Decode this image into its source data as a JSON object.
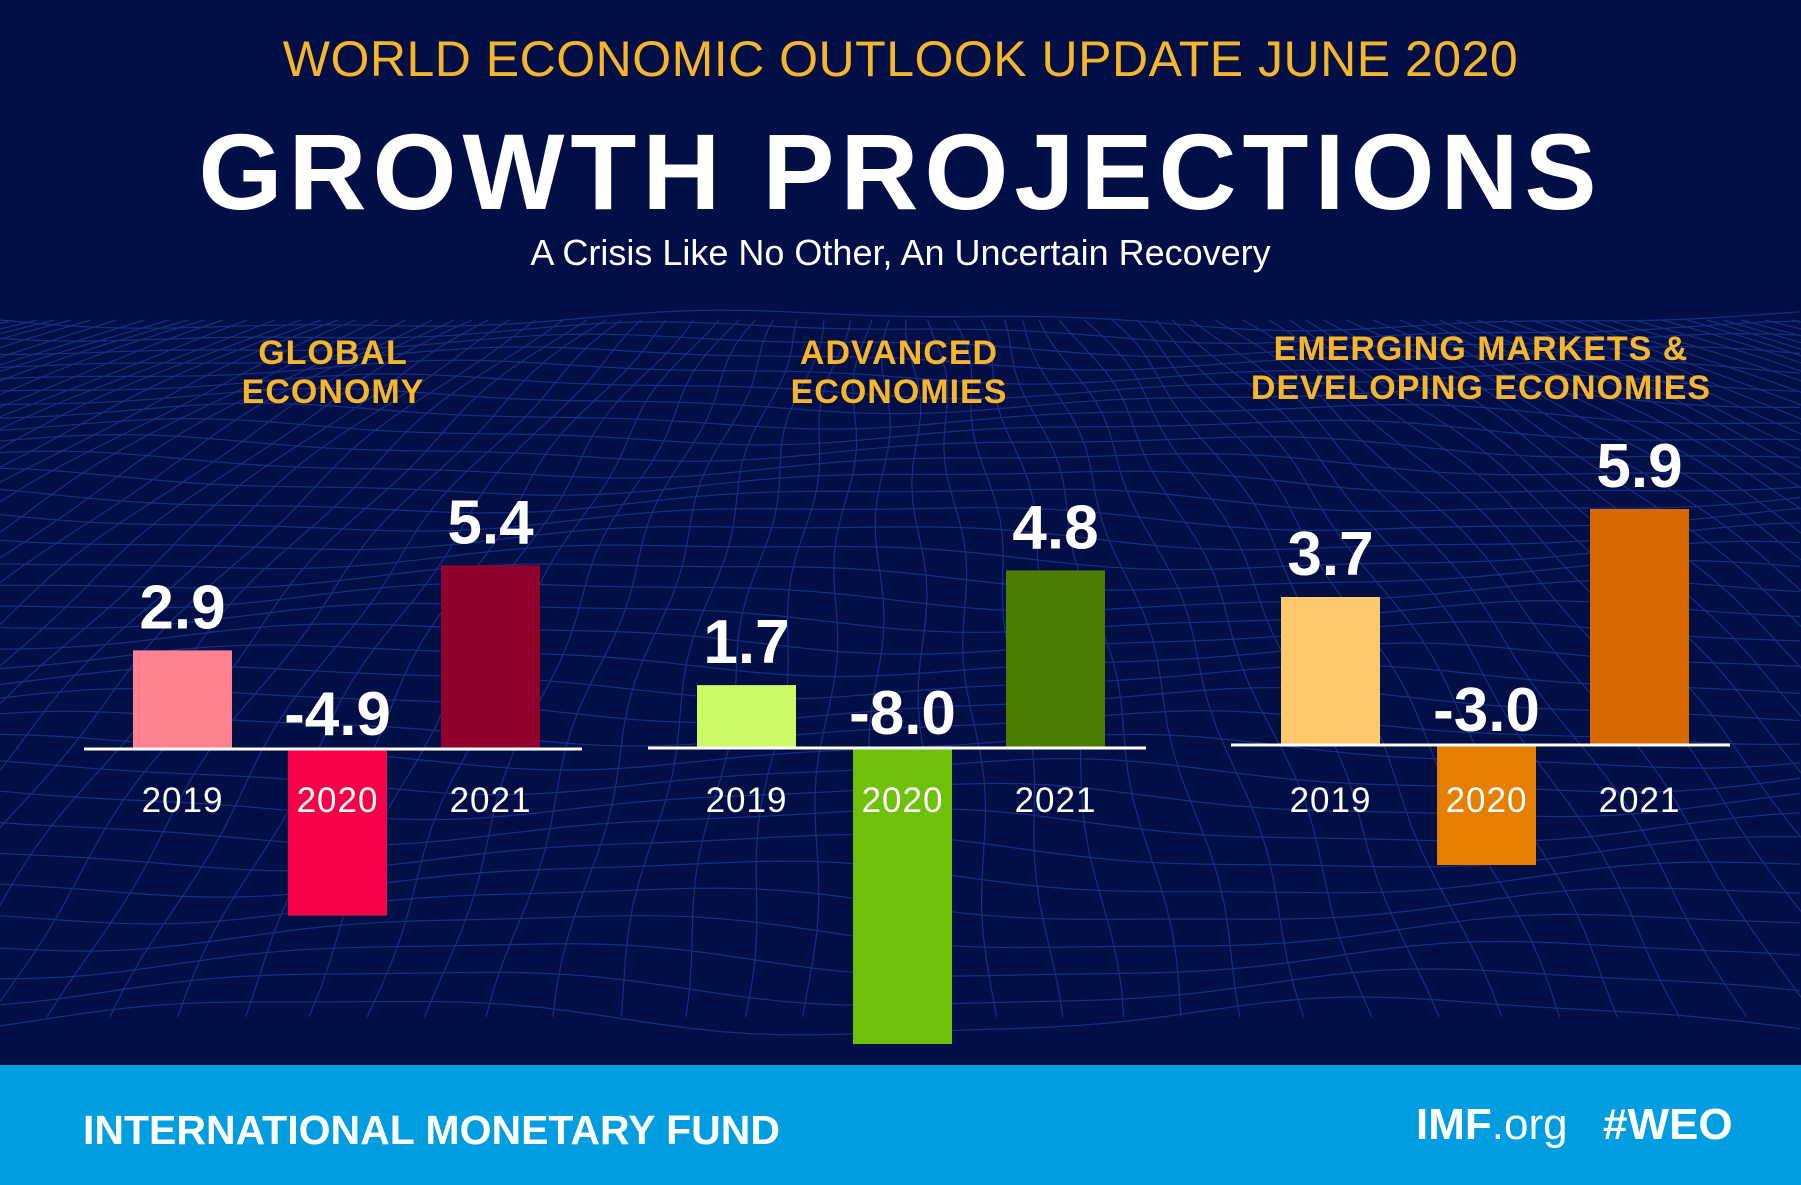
{
  "header": {
    "kicker": "WORLD ECONOMIC OUTLOOK UPDATE JUNE 2020",
    "title": "GROWTH PROJECTIONS",
    "subtitle": "A Crisis Like No Other, An Uncertain Recovery"
  },
  "chart_data": [
    {
      "type": "bar",
      "title": "GLOBAL ECONOMY",
      "categories": [
        "2019",
        "2020",
        "2021"
      ],
      "values": [
        2.9,
        -4.9,
        5.4
      ],
      "data_labels": [
        "2.9",
        "-4.9",
        "5.4"
      ],
      "colors": [
        "#ff8291",
        "#f70049",
        "#92002c"
      ]
    },
    {
      "type": "bar",
      "title": "ADVANCED ECONOMIES",
      "categories": [
        "2019",
        "2020",
        "2021"
      ],
      "values": [
        1.7,
        -8.0,
        4.8
      ],
      "data_labels": [
        "1.7",
        "-8.0",
        "4.8"
      ],
      "colors": [
        "#cbfa66",
        "#6ec00a",
        "#4c7c00"
      ]
    },
    {
      "type": "bar",
      "title": "EMERGING MARKETS & DEVELOPING ECONOMIES",
      "categories": [
        "2019",
        "2020",
        "2021"
      ],
      "values": [
        3.7,
        -3.0,
        5.9
      ],
      "data_labels": [
        "3.7",
        "-3.0",
        "5.9"
      ],
      "colors": [
        "#fdc96b",
        "#e67f00",
        "#d86800"
      ]
    }
  ],
  "panel_titles": [
    [
      "GLOBAL",
      "ECONOMY"
    ],
    [
      "ADVANCED",
      "ECONOMIES"
    ],
    [
      "EMERGING MARKETS &",
      "DEVELOPING ECONOMIES"
    ]
  ],
  "footer": {
    "org": "INTERNATIONAL MONETARY FUND",
    "site_bold": "IMF",
    "site_rest": ".org",
    "hashtag": "#WEO"
  },
  "colors": {
    "background": "#020f47",
    "accent": "#f7b52a",
    "footer": "#009ee0"
  }
}
